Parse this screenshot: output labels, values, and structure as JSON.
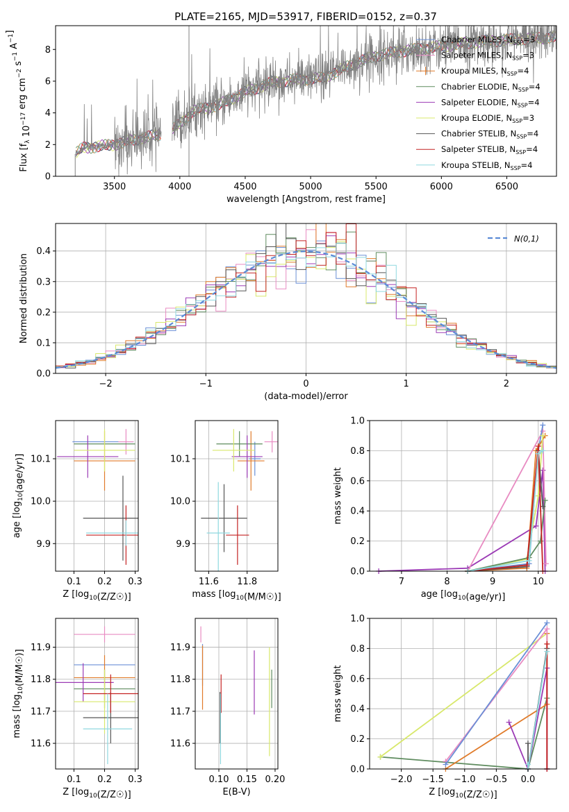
{
  "figure": {
    "title": "PLATE=2165, MJD=53917, FIBERID=0152, z=0.37"
  },
  "colors": {
    "Chabrier MILES": "#6a8fd6",
    "Salpeter MILES": "#e88bc2",
    "Kroupa MILES": "#e07b2a",
    "Chabrier ELODIE": "#5f8c5f",
    "Salpeter ELODIE": "#9b3ab5",
    "Kroupa ELODIE": "#d8e86b",
    "Chabrier STELIB": "#555555",
    "Salpeter STELIB": "#c42222",
    "Kroupa STELIB": "#8fd8df",
    "data": "#808080",
    "normal": "#5b8bd6"
  },
  "chart_data": [
    {
      "id": "spectrum",
      "type": "line",
      "xlabel": "wavelength [Angstrom, rest frame]",
      "ylabel": "Flux [f_λ 10^-17 erg cm^-2 s^-1 A^-1]",
      "xlim": [
        3050,
        6880
      ],
      "ylim": [
        0,
        9.5
      ],
      "xticks": [
        3500,
        4000,
        4500,
        5000,
        5500,
        6000,
        6500
      ],
      "yticks": [
        0,
        2,
        4,
        6,
        8
      ],
      "grid": false,
      "legend_position": "top-right",
      "legend": [
        {
          "name": "Chabrier MILES",
          "nssp": "3"
        },
        {
          "name": "Salpeter MILES",
          "nssp": "3"
        },
        {
          "name": "Kroupa MILES",
          "nssp": "4"
        },
        {
          "name": "Chabrier ELODIE",
          "nssp": "4"
        },
        {
          "name": "Salpeter ELODIE",
          "nssp": "4"
        },
        {
          "name": "Kroupa ELODIE",
          "nssp": "3"
        },
        {
          "name": "Chabrier STELIB",
          "nssp": "4"
        },
        {
          "name": "Salpeter STELIB",
          "nssp": "4"
        },
        {
          "name": "Kroupa STELIB",
          "nssp": "4"
        }
      ],
      "continuum": {
        "x": [
          3200,
          3260,
          3400,
          3500,
          3700,
          3900,
          4000,
          4100,
          4300,
          4500,
          4700,
          4900,
          5100,
          5300,
          5500,
          5700,
          5900,
          6100,
          6300,
          6500,
          6700,
          6880
        ],
        "y": [
          1.4,
          1.8,
          1.9,
          2.0,
          2.4,
          2.7,
          3.3,
          4.1,
          4.5,
          5.3,
          5.9,
          6.1,
          6.2,
          7.0,
          7.6,
          7.9,
          8.1,
          8.3,
          8.5,
          8.6,
          8.7,
          8.8
        ]
      },
      "gaps": [
        [
          3000,
          3200
        ],
        [
          3860,
          3940
        ]
      ]
    },
    {
      "id": "residuals",
      "type": "histogram",
      "xlabel": "(data-model)/error",
      "ylabel": "Normed distribution",
      "xlim": [
        -2.5,
        2.5
      ],
      "ylim": [
        0,
        0.49
      ],
      "xticks": [
        -2,
        -1,
        0,
        1,
        2
      ],
      "yticks": [
        0.0,
        0.1,
        0.2,
        0.3,
        0.4
      ],
      "grid": true,
      "legend_position": "top-right",
      "legend_label": "N(0,1)",
      "bin_width": 0.1,
      "bin_start": -2.5
    },
    {
      "id": "age-vs-Z",
      "type": "scatter",
      "xlabel": "Z [log10(Z/Z☉)]",
      "ylabel": "age  [log10(age/yr)]",
      "xlim": [
        0.04,
        0.31
      ],
      "ylim": [
        9.835,
        10.19
      ],
      "xticks": [
        0.1,
        0.2,
        0.3
      ],
      "yticks": [
        9.9,
        10.0,
        10.1
      ],
      "grid": true,
      "points": [
        {
          "s": "Chabrier MILES",
          "x": 0.195,
          "y": 10.14,
          "ex": 0.1,
          "ey": 0.001
        },
        {
          "s": "Salpeter MILES",
          "x": 0.27,
          "y": 10.14,
          "ex": 0.025,
          "ey": 0.03
        },
        {
          "s": "Kroupa MILES",
          "x": 0.2,
          "y": 10.095,
          "ex": 0.1,
          "ey": 0.07
        },
        {
          "s": "Chabrier ELODIE",
          "x": 0.2,
          "y": 10.135,
          "ex": 0.1,
          "ey": 0.001
        },
        {
          "s": "Salpeter ELODIE",
          "x": 0.145,
          "y": 10.105,
          "ex": 0.1,
          "ey": 0.05
        },
        {
          "s": "Kroupa ELODIE",
          "x": 0.2,
          "y": 10.12,
          "ex": 0.1,
          "ey": 0.05
        },
        {
          "s": "Chabrier STELIB",
          "x": 0.26,
          "y": 9.96,
          "ex": 0.13,
          "ey": 0.1
        },
        {
          "s": "Salpeter STELIB",
          "x": 0.27,
          "y": 9.92,
          "ex": 0.13,
          "ey": 0.07
        },
        {
          "s": "Kroupa STELIB",
          "x": 0.27,
          "y": 9.925,
          "ex": 0.13,
          "ey": 0.03
        }
      ]
    },
    {
      "id": "age-vs-mass",
      "type": "scatter",
      "xlabel": "mass [log10(M/M☉)]",
      "ylabel": "",
      "xlim": [
        11.53,
        11.96
      ],
      "ylim": [
        9.835,
        10.19
      ],
      "xticks": [
        11.6,
        11.8
      ],
      "yticks": [
        9.9,
        10.0,
        10.1
      ],
      "grid": true,
      "points": [
        {
          "s": "Chabrier MILES",
          "x": 11.84,
          "y": 10.1,
          "ex": 0.03,
          "ey": 0.04
        },
        {
          "s": "Salpeter MILES",
          "x": 11.93,
          "y": 10.14,
          "ex": 0.04,
          "ey": 0.025
        },
        {
          "s": "Kroupa MILES",
          "x": 11.82,
          "y": 10.095,
          "ex": 0.07,
          "ey": 0.07
        },
        {
          "s": "Chabrier ELODIE",
          "x": 11.76,
          "y": 10.135,
          "ex": 0.12,
          "ey": 0.03
        },
        {
          "s": "Salpeter ELODIE",
          "x": 11.8,
          "y": 10.105,
          "ex": 0.08,
          "ey": 0.05
        },
        {
          "s": "Kroupa ELODIE",
          "x": 11.73,
          "y": 10.12,
          "ex": 0.11,
          "ey": 0.05
        },
        {
          "s": "Chabrier STELIB",
          "x": 11.68,
          "y": 9.96,
          "ex": 0.12,
          "ey": 0.08
        },
        {
          "s": "Salpeter STELIB",
          "x": 11.75,
          "y": 9.92,
          "ex": 0.06,
          "ey": 0.07
        },
        {
          "s": "Kroupa STELIB",
          "x": 11.65,
          "y": 9.925,
          "ex": 0.06,
          "ey": 0.12
        }
      ]
    },
    {
      "id": "weight-vs-age",
      "type": "line",
      "xlabel": "age  [log10(age/yr)]",
      "ylabel": "mass weight",
      "xlim": [
        6.3,
        10.4
      ],
      "ylim": [
        0,
        1.0
      ],
      "xticks": [
        7,
        8,
        9,
        10
      ],
      "yticks": [
        0.0,
        0.2,
        0.4,
        0.6,
        0.8,
        1.0
      ],
      "grid": true,
      "series": [
        {
          "s": "Salpeter ELODIE",
          "x": [
            6.5,
            8.45,
            9.95,
            10.1,
            10.15
          ],
          "y": [
            0.0,
            0.02,
            0.3,
            0.67,
            0.0
          ]
        },
        {
          "s": "Salpeter MILES",
          "x": [
            8.45,
            10.1,
            10.17
          ],
          "y": [
            0.0,
            0.93,
            0.05
          ]
        },
        {
          "s": "Chabrier MILES",
          "x": [
            8.45,
            9.8,
            10.0,
            10.1
          ],
          "y": [
            0.0,
            0.05,
            0.8,
            0.97
          ]
        },
        {
          "s": "Kroupa MILES",
          "x": [
            8.45,
            9.75,
            9.95,
            10.15
          ],
          "y": [
            0.0,
            0.02,
            0.8,
            0.9
          ]
        },
        {
          "s": "Kroupa ELODIE",
          "x": [
            8.45,
            9.75,
            10.0,
            10.1
          ],
          "y": [
            0.0,
            0.08,
            0.5,
            0.9
          ]
        },
        {
          "s": "Chabrier ELODIE",
          "x": [
            8.45,
            9.8,
            10.05,
            10.15
          ],
          "y": [
            0.0,
            0.09,
            0.2,
            0.47
          ]
        },
        {
          "s": "Chabrier STELIB",
          "x": [
            8.45,
            9.75,
            10.0,
            10.1
          ],
          "y": [
            0.0,
            0.03,
            0.8,
            0.43
          ]
        },
        {
          "s": "Salpeter STELIB",
          "x": [
            8.45,
            9.75,
            10.0,
            10.1
          ],
          "y": [
            0.0,
            0.04,
            0.83,
            0.0
          ]
        },
        {
          "s": "Kroupa STELIB",
          "x": [
            8.45,
            9.8,
            10.0,
            10.1
          ],
          "y": [
            0.0,
            0.07,
            0.78,
            0.8
          ]
        }
      ]
    },
    {
      "id": "mass-vs-Z",
      "type": "scatter",
      "xlabel": "Z [log10(Z/Z☉)]",
      "ylabel": "mass [log10(M/M☉)]",
      "xlim": [
        0.04,
        0.31
      ],
      "ylim": [
        11.52,
        11.99
      ],
      "xticks": [
        0.1,
        0.2,
        0.3
      ],
      "yticks": [
        11.6,
        11.7,
        11.8,
        11.9
      ],
      "grid": true,
      "points": [
        {
          "s": "Chabrier MILES",
          "x": 0.2,
          "y": 11.845,
          "ex": 0.1,
          "ey": 0.001
        },
        {
          "s": "Salpeter MILES",
          "x": 0.2,
          "y": 11.94,
          "ex": 0.1,
          "ey": 0.025
        },
        {
          "s": "Kroupa MILES",
          "x": 0.2,
          "y": 11.805,
          "ex": 0.1,
          "ey": 0.07
        },
        {
          "s": "Chabrier ELODIE",
          "x": 0.2,
          "y": 11.77,
          "ex": 0.1,
          "ey": 0.06
        },
        {
          "s": "Salpeter ELODIE",
          "x": 0.13,
          "y": 11.79,
          "ex": 0.1,
          "ey": 0.06
        },
        {
          "s": "Kroupa ELODIE",
          "x": 0.2,
          "y": 11.73,
          "ex": 0.1,
          "ey": 0.1
        },
        {
          "s": "Chabrier STELIB",
          "x": 0.22,
          "y": 11.68,
          "ex": 0.09,
          "ey": 0.08
        },
        {
          "s": "Salpeter STELIB",
          "x": 0.22,
          "y": 11.755,
          "ex": 0.09,
          "ey": 0.06
        },
        {
          "s": "Kroupa STELIB",
          "x": 0.21,
          "y": 11.645,
          "ex": 0.08,
          "ey": 0.11
        }
      ]
    },
    {
      "id": "mass-vs-ebv",
      "type": "scatter",
      "xlabel": "E(B-V)",
      "ylabel": "",
      "xlim": [
        0.058,
        0.205
      ],
      "ylim": [
        11.52,
        11.99
      ],
      "xticks": [
        0.1,
        0.15,
        0.2
      ],
      "yticks": [
        11.6,
        11.7,
        11.8,
        11.9
      ],
      "grid": true,
      "points": [
        {
          "s": "Chabrier MILES",
          "x": 0.071,
          "y": 11.845,
          "ex": 0.0,
          "ey": 0.065
        },
        {
          "s": "Salpeter MILES",
          "x": 0.068,
          "y": 11.94,
          "ex": 0.0,
          "ey": 0.025
        },
        {
          "s": "Kroupa MILES",
          "x": 0.071,
          "y": 11.805,
          "ex": 0.0,
          "ey": 0.1
        },
        {
          "s": "Chabrier ELODIE",
          "x": 0.194,
          "y": 11.77,
          "ex": 0.0,
          "ey": 0.06
        },
        {
          "s": "Salpeter ELODIE",
          "x": 0.163,
          "y": 11.79,
          "ex": 0.0,
          "ey": 0.1
        },
        {
          "s": "Kroupa ELODIE",
          "x": 0.19,
          "y": 11.73,
          "ex": 0.0,
          "ey": 0.17
        },
        {
          "s": "Chabrier STELIB",
          "x": 0.102,
          "y": 11.68,
          "ex": 0.0,
          "ey": 0.08
        },
        {
          "s": "Salpeter STELIB",
          "x": 0.104,
          "y": 11.755,
          "ex": 0.0,
          "ey": 0.06
        },
        {
          "s": "Kroupa STELIB",
          "x": 0.103,
          "y": 11.645,
          "ex": 0.0,
          "ey": 0.11
        }
      ]
    },
    {
      "id": "weight-vs-Z",
      "type": "line",
      "xlabel": "Z [log10(Z/Z☉)]",
      "ylabel": "mass weight",
      "xlim": [
        -2.5,
        0.45
      ],
      "ylim": [
        0,
        1.0
      ],
      "xticks": [
        -2.0,
        -1.5,
        -1.0,
        -0.5,
        0.0
      ],
      "yticks": [
        0.0,
        0.2,
        0.4,
        0.6,
        0.8,
        1.0
      ],
      "grid": true,
      "series": [
        {
          "s": "Chabrier ELODIE",
          "x": [
            -2.33,
            0.0,
            0.3
          ],
          "y": [
            0.08,
            0.0,
            0.47
          ]
        },
        {
          "s": "Kroupa ELODIE",
          "x": [
            -2.33,
            0.3,
            0.3
          ],
          "y": [
            0.08,
            0.9,
            0.0
          ]
        },
        {
          "s": "Kroupa MILES",
          "x": [
            -1.3,
            0.3,
            0.3
          ],
          "y": [
            0.0,
            0.43,
            0.9
          ]
        },
        {
          "s": "Salpeter MILES",
          "x": [
            -1.3,
            0.3,
            0.3
          ],
          "y": [
            0.05,
            0.93,
            0.0
          ]
        },
        {
          "s": "Chabrier MILES",
          "x": [
            -1.3,
            0.3
          ],
          "y": [
            0.03,
            0.97
          ]
        },
        {
          "s": "Salpeter ELODIE",
          "x": [
            -0.3,
            0.0,
            0.3,
            0.3
          ],
          "y": [
            0.31,
            0.0,
            0.67,
            0.0
          ]
        },
        {
          "s": "Chabrier STELIB",
          "x": [
            0.0,
            0.0,
            0.3
          ],
          "y": [
            0.17,
            0.0,
            0.8
          ]
        },
        {
          "s": "Salpeter STELIB",
          "x": [
            0.3,
            0.3
          ],
          "y": [
            0.0,
            0.83
          ]
        },
        {
          "s": "Kroupa STELIB",
          "x": [
            0.0,
            0.0,
            0.3
          ],
          "y": [
            0.03,
            0.0,
            0.78
          ]
        }
      ]
    }
  ]
}
